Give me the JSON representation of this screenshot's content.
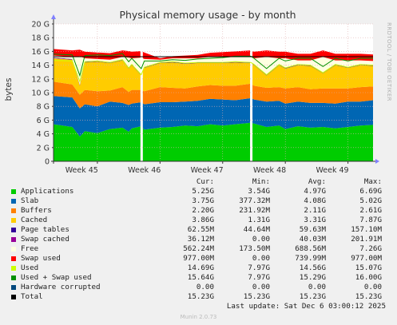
{
  "chart_data": {
    "type": "area",
    "title": "Physical memory usage - by month",
    "ylabel": "bytes",
    "side_label": "RRDTOOL / TOBI OETIKER",
    "ylim": [
      0,
      20
    ],
    "yunit": "G",
    "yticks": [
      "0",
      "2 G",
      "4 G",
      "6 G",
      "8 G",
      "10 G",
      "12 G",
      "14 G",
      "16 G",
      "18 G",
      "20 G"
    ],
    "xlim": [
      44.3,
      49.4
    ],
    "xticks": [
      {
        "label": "Week 45",
        "x": 44.75
      },
      {
        "label": "Week 46",
        "x": 45.75
      },
      {
        "label": "Week 47",
        "x": 46.75
      },
      {
        "label": "Week 48",
        "x": 47.75
      },
      {
        "label": "Week 49",
        "x": 48.75
      }
    ],
    "week_boundaries": [
      45.0,
      46.0,
      47.0,
      48.0,
      49.0
    ],
    "gaps": [
      45.7,
      47.45
    ],
    "x": [
      44.3,
      44.6,
      44.72,
      44.8,
      45.0,
      45.2,
      45.4,
      45.5,
      45.55,
      45.7,
      45.75,
      46.0,
      46.2,
      46.4,
      46.6,
      46.8,
      47.0,
      47.2,
      47.45,
      47.5,
      47.7,
      47.9,
      48.0,
      48.2,
      48.4,
      48.6,
      48.8,
      49.0,
      49.2,
      49.4
    ],
    "series": [
      {
        "name": "Applications",
        "color": "#00CC00",
        "values": [
          5.4,
          5.0,
          3.6,
          4.4,
          4.1,
          4.7,
          4.9,
          4.3,
          4.8,
          5.1,
          4.6,
          4.9,
          5.0,
          5.2,
          5.1,
          5.4,
          5.2,
          5.4,
          5.6,
          5.5,
          5.0,
          5.2,
          4.7,
          5.1,
          4.9,
          5.0,
          4.8,
          5.0,
          5.2,
          5.3
        ]
      },
      {
        "name": "Slab",
        "color": "#0066B3",
        "values": [
          4.1,
          4.3,
          4.1,
          3.9,
          3.9,
          4.0,
          3.6,
          3.9,
          3.6,
          3.5,
          3.7,
          3.7,
          3.6,
          3.5,
          3.7,
          3.7,
          3.8,
          3.5,
          3.6,
          3.5,
          3.7,
          3.6,
          3.7,
          3.6,
          3.6,
          3.5,
          3.6,
          3.7,
          3.5,
          3.6
        ]
      },
      {
        "name": "Buffers",
        "color": "#FF8000",
        "values": [
          2.1,
          1.9,
          2.0,
          2.1,
          2.2,
          1.6,
          2.3,
          1.9,
          2.0,
          1.8,
          1.9,
          2.2,
          2.1,
          1.9,
          2.1,
          2.0,
          2.0,
          2.1,
          2.1,
          2.0,
          2.0,
          2.0,
          2.2,
          2.1,
          2.0,
          2.1,
          2.2,
          1.9,
          2.1,
          2.0
        ]
      },
      {
        "name": "Cached",
        "color": "#FFCC00",
        "values": [
          3.4,
          3.6,
          1.3,
          4.0,
          4.3,
          4.0,
          3.9,
          3.4,
          3.6,
          2.1,
          3.4,
          3.5,
          3.7,
          3.6,
          3.4,
          3.2,
          3.3,
          3.4,
          3.0,
          3.0,
          1.8,
          3.2,
          2.9,
          3.2,
          3.4,
          2.2,
          3.4,
          3.0,
          3.2,
          3.0
        ]
      },
      {
        "name": "Page tables",
        "color": "#330099",
        "values": [
          0.06,
          0.06,
          0.05,
          0.06,
          0.06,
          0.06,
          0.06,
          0.06,
          0.06,
          0.06,
          0.06,
          0.06,
          0.06,
          0.06,
          0.06,
          0.06,
          0.06,
          0.06,
          0.06,
          0.06,
          0.06,
          0.06,
          0.06,
          0.06,
          0.06,
          0.06,
          0.06,
          0.06,
          0.06,
          0.06
        ]
      },
      {
        "name": "Swap cached",
        "color": "#990099",
        "values": [
          0.04,
          0.04,
          0.05,
          0.04,
          0.04,
          0.04,
          0.04,
          0.04,
          0.04,
          0.04,
          0.04,
          0.04,
          0.04,
          0.04,
          0.04,
          0.04,
          0.04,
          0.04,
          0.04,
          0.04,
          0.04,
          0.04,
          0.04,
          0.04,
          0.04,
          0.04,
          0.04,
          0.04,
          0.04,
          0.04
        ]
      },
      {
        "name": "Free",
        "color": "#FFFFE0",
        "values": [
          0.3,
          0.3,
          4.2,
          0.5,
          0.3,
          0.4,
          0.4,
          1.5,
          0.9,
          2.5,
          1.2,
          0.4,
          0.5,
          0.7,
          0.6,
          0.8,
          0.8,
          0.7,
          0.8,
          0.9,
          2.6,
          0.9,
          1.4,
          0.6,
          0.7,
          2.3,
          0.6,
          1.0,
          0.6,
          0.6
        ]
      },
      {
        "name": "Swap used",
        "color": "#FF0000",
        "values": [
          0.95,
          0.95,
          0.95,
          0.95,
          0.95,
          0.95,
          0.95,
          0.95,
          0.95,
          0.95,
          0.95,
          0.2,
          0.3,
          0.4,
          0.5,
          0.6,
          0.7,
          0.8,
          0.95,
          0.95,
          0.95,
          0.95,
          0.95,
          0.95,
          0.95,
          0.95,
          0.95,
          0.95,
          0.95,
          0.95
        ]
      }
    ],
    "lines": [
      {
        "name": "Used",
        "color": "#CCFF00",
        "values": [
          14.7,
          14.6,
          11.6,
          14.5,
          14.6,
          14.4,
          14.8,
          13.6,
          14.1,
          12.6,
          13.7,
          14.4,
          14.5,
          14.3,
          14.4,
          14.4,
          14.4,
          14.5,
          14.4,
          14.1,
          12.6,
          14.1,
          13.6,
          14.1,
          14.0,
          12.9,
          14.1,
          13.7,
          14.1,
          14.0
        ]
      },
      {
        "name": "Used + Swap used",
        "color": "#008F00",
        "values": [
          15.6,
          15.5,
          12.5,
          15.4,
          15.5,
          15.4,
          15.7,
          14.5,
          15.0,
          13.5,
          14.6,
          14.6,
          14.8,
          14.7,
          14.9,
          15.0,
          15.1,
          15.3,
          15.3,
          15.0,
          13.5,
          15.0,
          14.6,
          15.0,
          15.0,
          13.8,
          15.0,
          14.6,
          15.0,
          15.0
        ]
      },
      {
        "name": "Hardware corrupted",
        "color": "#00487D",
        "values": [
          0,
          0,
          0,
          0,
          0,
          0,
          0,
          0,
          0,
          0,
          0,
          0,
          0,
          0,
          0,
          0,
          0,
          0,
          0,
          0,
          0,
          0,
          0,
          0,
          0,
          0,
          0,
          0,
          0,
          0
        ]
      },
      {
        "name": "Total",
        "color": "#000000",
        "values": [
          15.23,
          15.23,
          15.23,
          15.23,
          15.23,
          15.23,
          15.23,
          15.23,
          15.23,
          15.23,
          15.23,
          15.23,
          15.23,
          15.23,
          15.23,
          15.23,
          15.23,
          15.23,
          15.23,
          15.23,
          15.23,
          15.23,
          15.23,
          15.23,
          15.23,
          15.23,
          15.23,
          15.23,
          15.23,
          15.23
        ]
      }
    ]
  },
  "legend": {
    "headers": [
      "Cur:",
      "Min:",
      "Avg:",
      "Max:"
    ],
    "rows": [
      {
        "name": "Applications",
        "color": "#00CC00",
        "cur": "5.25G",
        "min": "3.54G",
        "avg": "4.97G",
        "max": "6.69G"
      },
      {
        "name": "Slab",
        "color": "#0066B3",
        "cur": "3.75G",
        "min": "377.32M",
        "avg": "4.08G",
        "max": "5.02G"
      },
      {
        "name": "Buffers",
        "color": "#FF8000",
        "cur": "2.20G",
        "min": "231.92M",
        "avg": "2.11G",
        "max": "2.61G"
      },
      {
        "name": "Cached",
        "color": "#FFCC00",
        "cur": "3.86G",
        "min": "1.31G",
        "avg": "3.31G",
        "max": "7.87G"
      },
      {
        "name": "Page tables",
        "color": "#330099",
        "cur": "62.55M",
        "min": "44.64M",
        "avg": "59.63M",
        "max": "157.10M"
      },
      {
        "name": "Swap cached",
        "color": "#990099",
        "cur": "36.12M",
        "min": "0.00",
        "avg": "40.03M",
        "max": "201.91M"
      },
      {
        "name": "Free",
        "color": "#FFFFE0",
        "cur": "562.24M",
        "min": "173.50M",
        "avg": "688.56M",
        "max": "7.26G"
      },
      {
        "name": "Swap used",
        "color": "#FF0000",
        "cur": "977.00M",
        "min": "0.00",
        "avg": "739.99M",
        "max": "977.00M"
      },
      {
        "name": "Used",
        "color": "#CCFF00",
        "cur": "14.69G",
        "min": "7.97G",
        "avg": "14.56G",
        "max": "15.07G"
      },
      {
        "name": "Used + Swap used",
        "color": "#008F00",
        "cur": "15.64G",
        "min": "7.97G",
        "avg": "15.29G",
        "max": "16.00G"
      },
      {
        "name": "Hardware corrupted",
        "color": "#00487D",
        "cur": "0.00",
        "min": "0.00",
        "avg": "0.00",
        "max": "0.00"
      },
      {
        "name": "Total",
        "color": "#000000",
        "cur": "15.23G",
        "min": "15.23G",
        "avg": "15.23G",
        "max": "15.23G"
      }
    ]
  },
  "footer": {
    "last_update": "Last update: Sat Dec  6 03:00:12 2025"
  },
  "munin_version": "Munin 2.0.73"
}
